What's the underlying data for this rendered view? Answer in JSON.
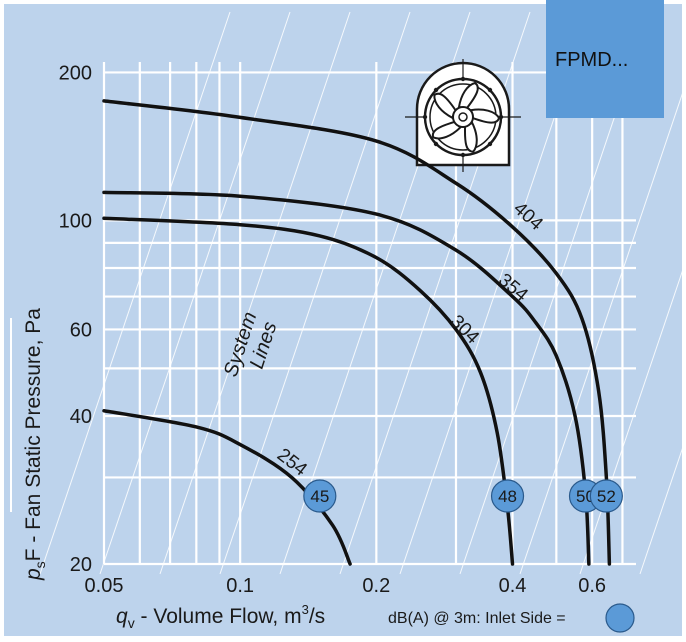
{
  "model_label": "FPMD...",
  "chart_data": {
    "type": "line",
    "x_scale": "log",
    "y_scale": "log",
    "xlim": [
      0.05,
      0.75
    ],
    "ylim": [
      20,
      210
    ],
    "x_ticks": [
      0.05,
      0.1,
      0.2,
      0.4,
      0.6
    ],
    "x_tick_labels": [
      "0.05",
      "0.1",
      "0.2",
      "0.4",
      "0.6"
    ],
    "y_ticks": [
      20,
      40,
      60,
      100,
      200
    ],
    "y_tick_labels": [
      "20",
      "40",
      "60",
      "100",
      "200"
    ],
    "xlabel": {
      "symbol": "q",
      "subscript": "v",
      "text": " - Volume Flow, m",
      "superscript": "3",
      "tail": "/s"
    },
    "ylabel": {
      "symbol": "p",
      "subscript": "s",
      "text": "F - Fan Static Pressure, Pa"
    },
    "grid": true,
    "system_lines_label": [
      "System",
      "Lines"
    ],
    "series": [
      {
        "name": "254",
        "points": [
          [
            0.05,
            41
          ],
          [
            0.08,
            38
          ],
          [
            0.1,
            35
          ],
          [
            0.13,
            30
          ],
          [
            0.16,
            24
          ],
          [
            0.175,
            20
          ]
        ]
      },
      {
        "name": "304",
        "points": [
          [
            0.05,
            101
          ],
          [
            0.1,
            98
          ],
          [
            0.15,
            93
          ],
          [
            0.2,
            84
          ],
          [
            0.25,
            72
          ],
          [
            0.3,
            60
          ],
          [
            0.34,
            49
          ],
          [
            0.37,
            37
          ],
          [
            0.39,
            26
          ],
          [
            0.4,
            20
          ]
        ]
      },
      {
        "name": "354",
        "points": [
          [
            0.05,
            114
          ],
          [
            0.1,
            112
          ],
          [
            0.2,
            103
          ],
          [
            0.3,
            87
          ],
          [
            0.4,
            70
          ],
          [
            0.45,
            62
          ],
          [
            0.5,
            53
          ],
          [
            0.55,
            40
          ],
          [
            0.58,
            28
          ],
          [
            0.59,
            20
          ]
        ]
      },
      {
        "name": "404",
        "points": [
          [
            0.05,
            175
          ],
          [
            0.1,
            162
          ],
          [
            0.2,
            145
          ],
          [
            0.3,
            119
          ],
          [
            0.4,
            97
          ],
          [
            0.5,
            78
          ],
          [
            0.57,
            63
          ],
          [
            0.62,
            45
          ],
          [
            0.645,
            30
          ],
          [
            0.655,
            20
          ]
        ]
      }
    ],
    "noise_badges": [
      {
        "label": "45",
        "x": 0.15,
        "y": 27.5
      },
      {
        "label": "48",
        "x": 0.39,
        "y": 27.5
      },
      {
        "label": "50",
        "x": 0.58,
        "y": 27.5
      },
      {
        "label": "52",
        "x": 0.645,
        "y": 27.5
      }
    ],
    "legend_note": "dB(A) @ 3m:  Inlet Side ="
  }
}
